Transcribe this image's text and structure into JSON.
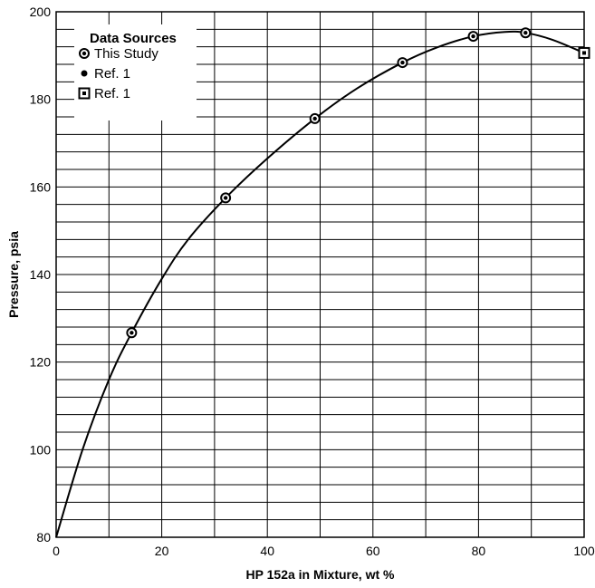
{
  "chart_data": {
    "type": "scatter",
    "xlabel": "HP 152a in Mixture, wt %",
    "ylabel": "Pressure, psia",
    "xlim": [
      0,
      100
    ],
    "ylim": [
      80,
      200
    ],
    "x_ticks": [
      0,
      20,
      40,
      60,
      80,
      100
    ],
    "y_ticks": [
      80,
      100,
      120,
      140,
      160,
      180,
      200
    ],
    "x_grid_step": 10,
    "y_grid_step": 4,
    "grid": true,
    "legend": {
      "title": "Data Sources",
      "position": "top-left",
      "entries": [
        {
          "label": "This Study",
          "marker": "circle-dot"
        },
        {
          "label": "Ref. 1",
          "marker": "filled-dot"
        },
        {
          "label": "Ref. 1",
          "marker": "square-dot"
        }
      ]
    },
    "series": [
      {
        "marker": "circle-dot",
        "points": [
          {
            "x": 14.3,
            "y": 126.7
          },
          {
            "x": 32.1,
            "y": 157.5
          },
          {
            "x": 49.0,
            "y": 175.6
          },
          {
            "x": 65.6,
            "y": 188.4
          },
          {
            "x": 79.0,
            "y": 194.4
          },
          {
            "x": 88.9,
            "y": 195.2
          }
        ]
      },
      {
        "marker": "square-dot",
        "points": [
          {
            "x": 100.0,
            "y": 190.6
          }
        ]
      }
    ],
    "curve": [
      {
        "x": 0,
        "y": 80
      },
      {
        "x": 5,
        "y": 100
      },
      {
        "x": 10,
        "y": 116
      },
      {
        "x": 14.3,
        "y": 126.7
      },
      {
        "x": 20,
        "y": 139
      },
      {
        "x": 25,
        "y": 148
      },
      {
        "x": 32.1,
        "y": 157.5
      },
      {
        "x": 40,
        "y": 166.5
      },
      {
        "x": 49,
        "y": 175.6
      },
      {
        "x": 57,
        "y": 182.5
      },
      {
        "x": 65.6,
        "y": 188.4
      },
      {
        "x": 72,
        "y": 191.8
      },
      {
        "x": 79,
        "y": 194.4
      },
      {
        "x": 85,
        "y": 195.4
      },
      {
        "x": 88.9,
        "y": 195.2
      },
      {
        "x": 94,
        "y": 193.6
      },
      {
        "x": 100,
        "y": 190.6
      }
    ]
  }
}
